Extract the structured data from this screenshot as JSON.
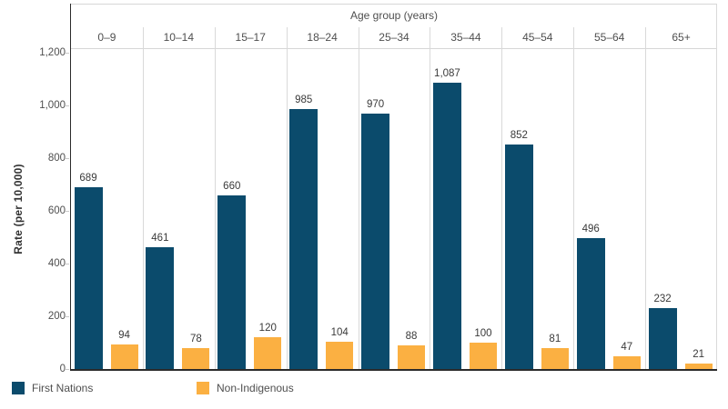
{
  "figure": {
    "y_axis_title": "Rate (per 10,000)",
    "x_axis_field_label": "Age group (years)"
  },
  "colors": {
    "first_nations": "#0b4b6c",
    "non_indigenous": "#fbb042",
    "axis_line": "#2b2b2b",
    "grid_line": "#d9d9d9",
    "text": "#4f4f4f"
  },
  "chart_data": {
    "type": "bar",
    "categories": [
      "0–9",
      "10–14",
      "15–17",
      "18–24",
      "25–34",
      "35–44",
      "45–54",
      "55–64",
      "65+"
    ],
    "series": [
      {
        "name": "First Nations",
        "color": "#0b4b6c",
        "values": [
          689,
          461,
          660,
          985,
          970,
          1087,
          852,
          496,
          232
        ]
      },
      {
        "name": "Non-Indigenous",
        "color": "#fbb042",
        "values": [
          94,
          78,
          120,
          104,
          88,
          100,
          81,
          47,
          21
        ]
      }
    ],
    "title": "",
    "xlabel": "Age group (years)",
    "ylabel": "Rate (per 10,000)",
    "ylim": [
      0,
      1200
    ],
    "yticks": [
      0,
      200,
      400,
      600,
      800,
      1000,
      1200
    ],
    "grid": false,
    "legend_position": "bottom-left",
    "value_labels": true
  }
}
